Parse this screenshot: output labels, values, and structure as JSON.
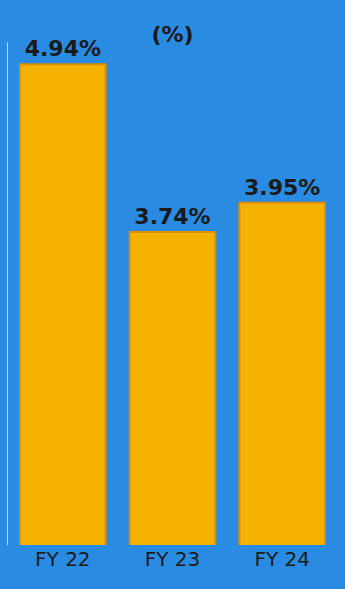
{
  "chart_data": {
    "type": "bar",
    "title": "(%)",
    "categories": [
      "FY 22",
      "FY 23",
      "FY 24"
    ],
    "values": [
      4.94,
      3.74,
      3.95
    ],
    "value_labels": [
      "4.94%",
      "3.74%",
      "3.95%"
    ],
    "color": "#f5b301",
    "ylim": [
      1.5,
      5.1
    ],
    "yticks": [],
    "grid": false,
    "data_labels": true,
    "tick_labels": "x"
  }
}
